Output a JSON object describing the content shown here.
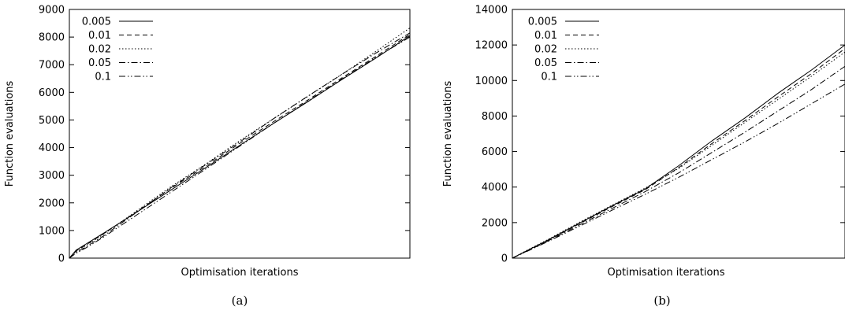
{
  "chart_data": [
    {
      "type": "line",
      "caption": "(a)",
      "xlabel": "Optimisation iterations",
      "ylabel": "Function evaluations",
      "ylim": [
        0,
        9000
      ],
      "xlim": [
        0,
        1
      ],
      "yticks": [
        0,
        1000,
        2000,
        3000,
        4000,
        5000,
        6000,
        7000,
        8000,
        9000
      ],
      "grid": false,
      "legend_position": "top-left",
      "series": [
        {
          "name": "0.005",
          "dash": "solid",
          "x": [
            0,
            0.02,
            0.05,
            0.1,
            0.2,
            0.3,
            0.4,
            0.5,
            0.6,
            0.7,
            0.8,
            0.9,
            1.0
          ],
          "y": [
            0,
            290,
            520,
            900,
            1680,
            2480,
            3270,
            4080,
            4880,
            5660,
            6460,
            7240,
            8050
          ]
        },
        {
          "name": "0.01",
          "dash": "dashed",
          "x": [
            0,
            0.02,
            0.05,
            0.1,
            0.2,
            0.3,
            0.4,
            0.5,
            0.6,
            0.7,
            0.8,
            0.9,
            1.0
          ],
          "y": [
            0,
            260,
            490,
            880,
            1700,
            2540,
            3320,
            4150,
            4940,
            5720,
            6520,
            7300,
            8100
          ]
        },
        {
          "name": "0.02",
          "dash": "dotted",
          "x": [
            0,
            0.02,
            0.05,
            0.1,
            0.2,
            0.3,
            0.4,
            0.5,
            0.6,
            0.7,
            0.8,
            0.9,
            1.0
          ],
          "y": [
            0,
            240,
            470,
            860,
            1730,
            2600,
            3400,
            4250,
            5050,
            5850,
            6650,
            7480,
            8330
          ]
        },
        {
          "name": "0.05",
          "dash": "dashdot",
          "x": [
            0,
            0.02,
            0.05,
            0.1,
            0.2,
            0.3,
            0.4,
            0.5,
            0.6,
            0.7,
            0.8,
            0.9,
            1.0
          ],
          "y": [
            0,
            200,
            420,
            800,
            1680,
            2560,
            3380,
            4200,
            5050,
            5860,
            6650,
            7420,
            8150
          ]
        },
        {
          "name": "0.1",
          "dash": "dashdotdot",
          "x": [
            0,
            0.02,
            0.05,
            0.1,
            0.2,
            0.3,
            0.4,
            0.5,
            0.6,
            0.7,
            0.8,
            0.9,
            1.0
          ],
          "y": [
            0,
            180,
            380,
            760,
            1580,
            2400,
            3220,
            4050,
            4880,
            5680,
            6480,
            7260,
            8000
          ]
        }
      ]
    },
    {
      "type": "line",
      "caption": "(b)",
      "xlabel": "Optimisation iterations",
      "ylabel": "Function evaluations",
      "ylim": [
        0,
        14000
      ],
      "xlim": [
        0,
        1
      ],
      "yticks": [
        0,
        2000,
        4000,
        6000,
        8000,
        10000,
        12000,
        14000
      ],
      "grid": false,
      "legend_position": "top-left",
      "series": [
        {
          "name": "0.005",
          "dash": "solid",
          "x": [
            0,
            0.05,
            0.1,
            0.2,
            0.3,
            0.4,
            0.5,
            0.6,
            0.7,
            0.8,
            0.9,
            1.0
          ],
          "y": [
            0,
            480,
            950,
            1950,
            2950,
            3900,
            5200,
            6600,
            7900,
            9300,
            10600,
            12000
          ]
        },
        {
          "name": "0.01",
          "dash": "dashed",
          "x": [
            0,
            0.05,
            0.1,
            0.2,
            0.3,
            0.4,
            0.5,
            0.6,
            0.7,
            0.8,
            0.9,
            1.0
          ],
          "y": [
            0,
            470,
            930,
            1920,
            2900,
            3860,
            5100,
            6450,
            7750,
            9100,
            10400,
            11800
          ]
        },
        {
          "name": "0.02",
          "dash": "dotted",
          "x": [
            0,
            0.05,
            0.1,
            0.2,
            0.3,
            0.4,
            0.5,
            0.6,
            0.7,
            0.8,
            0.9,
            1.0
          ],
          "y": [
            0,
            500,
            980,
            2000,
            2980,
            3950,
            5050,
            6350,
            7650,
            8950,
            10250,
            11600
          ]
        },
        {
          "name": "0.05",
          "dash": "dashdot",
          "x": [
            0,
            0.05,
            0.1,
            0.2,
            0.3,
            0.4,
            0.5,
            0.6,
            0.7,
            0.8,
            0.9,
            1.0
          ],
          "y": [
            0,
            450,
            900,
            1850,
            2800,
            3750,
            4800,
            5950,
            7100,
            8300,
            9500,
            10800
          ]
        },
        {
          "name": "0.1",
          "dash": "dashdotdot",
          "x": [
            0,
            0.05,
            0.1,
            0.2,
            0.3,
            0.4,
            0.5,
            0.6,
            0.7,
            0.8,
            0.9,
            1.0
          ],
          "y": [
            0,
            430,
            870,
            1780,
            2700,
            3600,
            4550,
            5550,
            6550,
            7600,
            8700,
            9800
          ]
        }
      ]
    }
  ]
}
